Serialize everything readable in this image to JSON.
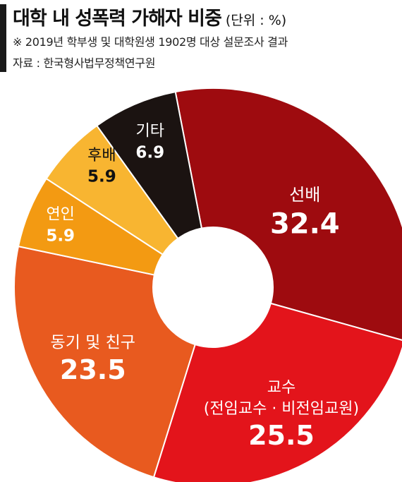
{
  "header": {
    "title": "대학 내 성폭력 가해자 비중",
    "unit": "(단위 : %)",
    "note": "※ 2019년 학부생 및 대학원생 1902명 대상 설문조사 결과",
    "source": "자료 : 한국형사법무정책연구원"
  },
  "chart_data": {
    "type": "pie",
    "title": "대학 내 성폭력 가해자 비중",
    "unit": "%",
    "slices": [
      {
        "label": "선배",
        "value": 32.4,
        "color": "#9e0b0f"
      },
      {
        "label": "교수",
        "sublabel": "(전임교수 · 비전임교원)",
        "value": 25.5,
        "color": "#e3141b"
      },
      {
        "label": "동기 및 친구",
        "value": 23.5,
        "color": "#e85a1f"
      },
      {
        "label": "연인",
        "value": 5.9,
        "color": "#f39a12"
      },
      {
        "label": "후배",
        "value": 5.9,
        "color": "#f8b531"
      },
      {
        "label": "기타",
        "value": 6.9,
        "color": "#1b1311"
      }
    ]
  }
}
